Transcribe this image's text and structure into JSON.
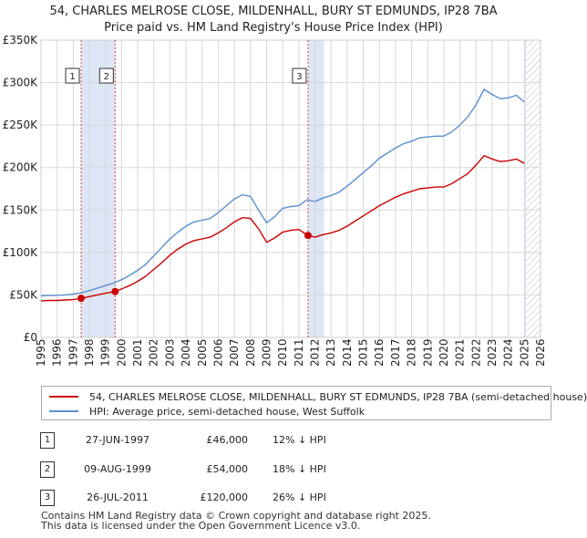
{
  "title": {
    "line1": "54, CHARLES MELROSE CLOSE, MILDENHALL, BURY ST EDMUNDS, IP28 7BA",
    "line2": "Price paid vs. HM Land Registry's House Price Index (HPI)"
  },
  "colors": {
    "property": "#cc0000",
    "hpi": "#5b8fd0",
    "marker_line": "#cc0000",
    "shade": "#dde6f5",
    "grid": "#d8d8d8"
  },
  "chart_data": {
    "type": "line",
    "title": "Price paid vs. HM Land Registry's House Price Index (HPI)",
    "xlabel": "",
    "ylabel": "",
    "xlim": [
      1995,
      2026
    ],
    "ylim": [
      0,
      350000
    ],
    "yticks": [
      0,
      50000,
      100000,
      150000,
      200000,
      250000,
      300000,
      350000
    ],
    "ytick_labels": [
      "£0",
      "£50K",
      "£100K",
      "£150K",
      "£200K",
      "£250K",
      "£300K",
      "£350K"
    ],
    "xticks": [
      1995,
      1996,
      1997,
      1998,
      1999,
      2000,
      2001,
      2002,
      2003,
      2004,
      2005,
      2006,
      2007,
      2008,
      2009,
      2010,
      2011,
      2012,
      2013,
      2014,
      2015,
      2016,
      2017,
      2018,
      2019,
      2020,
      2021,
      2022,
      2023,
      2024,
      2025,
      2026
    ],
    "series": [
      {
        "name": "54, CHARLES MELROSE CLOSE, MILDENHALL, BURY ST EDMUNDS, IP28 7BA (semi-detached house)",
        "color": "#cc0000",
        "x": [
          1995.0,
          1995.5,
          1996.0,
          1996.5,
          1997.0,
          1997.49,
          1998.0,
          1998.5,
          1999.0,
          1999.6,
          2000.0,
          2000.5,
          2001.0,
          2001.5,
          2002.0,
          2002.5,
          2003.0,
          2003.5,
          2004.0,
          2004.5,
          2005.0,
          2005.5,
          2006.0,
          2006.5,
          2007.0,
          2007.5,
          2008.0,
          2008.5,
          2009.0,
          2009.5,
          2010.0,
          2010.5,
          2011.0,
          2011.57,
          2012.0,
          2012.5,
          2013.0,
          2013.5,
          2014.0,
          2014.5,
          2015.0,
          2015.5,
          2016.0,
          2016.5,
          2017.0,
          2017.5,
          2018.0,
          2018.5,
          2019.0,
          2019.5,
          2020.0,
          2020.5,
          2021.0,
          2021.5,
          2022.0,
          2022.5,
          2023.0,
          2023.5,
          2024.0,
          2024.5,
          2025.0
        ],
        "values": [
          43000,
          43500,
          43500,
          44000,
          44500,
          46000,
          48000,
          50000,
          52000,
          54000,
          57000,
          61000,
          66000,
          72000,
          80000,
          88000,
          97000,
          104000,
          110000,
          114000,
          116000,
          118000,
          123000,
          129000,
          136000,
          141000,
          140000,
          128000,
          112000,
          117000,
          124000,
          126000,
          127000,
          120000,
          118000,
          121000,
          123000,
          126000,
          131000,
          137000,
          143000,
          149000,
          155000,
          160000,
          165000,
          169000,
          172000,
          175000,
          176000,
          177000,
          177000,
          181000,
          187000,
          193000,
          203000,
          214000,
          210000,
          207000,
          208000,
          210000,
          205000
        ]
      },
      {
        "name": "HPI: Average price, semi-detached house, West Suffolk",
        "color": "#5b8fd0",
        "x": [
          1995.0,
          1995.5,
          1996.0,
          1996.5,
          1997.0,
          1997.5,
          1998.0,
          1998.5,
          1999.0,
          1999.5,
          2000.0,
          2000.5,
          2001.0,
          2001.5,
          2002.0,
          2002.5,
          2003.0,
          2003.5,
          2004.0,
          2004.5,
          2005.0,
          2005.5,
          2006.0,
          2006.5,
          2007.0,
          2007.5,
          2008.0,
          2008.5,
          2009.0,
          2009.5,
          2010.0,
          2010.5,
          2011.0,
          2011.5,
          2012.0,
          2012.5,
          2013.0,
          2013.5,
          2014.0,
          2014.5,
          2015.0,
          2015.5,
          2016.0,
          2016.5,
          2017.0,
          2017.5,
          2018.0,
          2018.5,
          2019.0,
          2019.5,
          2020.0,
          2020.5,
          2021.0,
          2021.5,
          2022.0,
          2022.5,
          2023.0,
          2023.5,
          2024.0,
          2024.5,
          2025.0
        ],
        "values": [
          49000,
          49500,
          49500,
          50000,
          51000,
          52500,
          55000,
          58000,
          61000,
          64000,
          68000,
          73000,
          79000,
          86000,
          96000,
          106000,
          116000,
          124000,
          131000,
          136000,
          138000,
          140000,
          147000,
          155000,
          163000,
          168000,
          166000,
          150000,
          135000,
          142000,
          152000,
          154000,
          155000,
          162000,
          160000,
          164000,
          167000,
          171000,
          178000,
          186000,
          194000,
          202000,
          211000,
          217000,
          223000,
          228000,
          231000,
          235000,
          236000,
          237000,
          237000,
          242000,
          250000,
          260000,
          274000,
          292000,
          286000,
          281000,
          282000,
          285000,
          277000
        ]
      }
    ],
    "sales": [
      {
        "num": "1",
        "x": 1997.49,
        "value": 46000
      },
      {
        "num": "2",
        "x": 1999.6,
        "value": 54000
      },
      {
        "num": "3",
        "x": 2011.57,
        "value": 120000
      }
    ],
    "shaded_ranges": [
      [
        1997.49,
        1999.6
      ],
      [
        2011.57,
        2012.57
      ],
      [
        2025.0,
        2025.1
      ]
    ],
    "marker_label_value": 307000
  },
  "legend": {
    "property": "54, CHARLES MELROSE CLOSE, MILDENHALL, BURY ST EDMUNDS, IP28 7BA (semi-detached house)",
    "hpi": "HPI: Average price, semi-detached house, West Suffolk"
  },
  "transactions": [
    {
      "num": "1",
      "date": "27-JUN-1997",
      "price": "£46,000",
      "hpi": "12% ↓ HPI"
    },
    {
      "num": "2",
      "date": "09-AUG-1999",
      "price": "£54,000",
      "hpi": "18% ↓ HPI"
    },
    {
      "num": "3",
      "date": "26-JUL-2011",
      "price": "£120,000",
      "hpi": "26% ↓ HPI"
    }
  ],
  "footer": {
    "line1": "Contains HM Land Registry data © Crown copyright and database right 2025.",
    "line2": "This data is licensed under the Open Government Licence v3.0."
  }
}
